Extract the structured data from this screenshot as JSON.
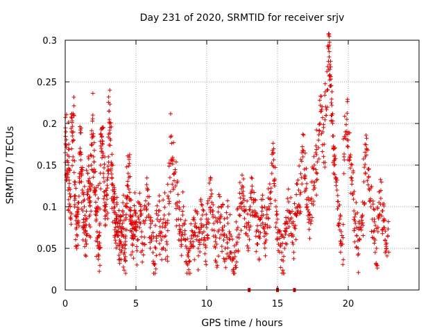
{
  "chart_data": {
    "type": "scatter",
    "title": "Day 231 of 2020, SRMTID for receiver srjv",
    "xlabel": "GPS time / hours",
    "ylabel": "SRMTID / TECUs",
    "xlim": [
      0,
      25
    ],
    "ylim": [
      0,
      0.3
    ],
    "xticks": [
      0,
      5,
      10,
      15,
      20
    ],
    "xtick_labels": [
      "0",
      "5",
      "10",
      "15",
      "20"
    ],
    "yticks": [
      0,
      0.05,
      0.1,
      0.15,
      0.2,
      0.25,
      0.3
    ],
    "ytick_labels": [
      "0",
      "0.05",
      "0.1",
      "0.15",
      "0.2",
      "0.25",
      "0.3"
    ],
    "grid": true,
    "marker": "+",
    "color": "#e00000",
    "series": [
      {
        "points": [
          [
            0.0,
            0.165
          ],
          [
            0.05,
            0.19
          ],
          [
            0.1,
            0.14
          ],
          [
            0.15,
            0.155
          ],
          [
            0.2,
            0.12
          ],
          [
            0.25,
            0.175
          ],
          [
            0.3,
            0.145
          ],
          [
            0.35,
            0.1
          ],
          [
            0.4,
            0.085
          ],
          [
            0.45,
            0.19
          ],
          [
            0.5,
            0.185
          ],
          [
            0.55,
            0.16
          ],
          [
            0.6,
            0.21
          ],
          [
            0.65,
            0.13
          ],
          [
            0.7,
            0.11
          ],
          [
            0.75,
            0.09
          ],
          [
            0.8,
            0.075
          ],
          [
            0.85,
            0.065
          ],
          [
            0.9,
            0.08
          ],
          [
            0.95,
            0.105
          ],
          [
            1.0,
            0.14
          ],
          [
            1.05,
            0.17
          ],
          [
            1.1,
            0.165
          ],
          [
            1.15,
            0.13
          ],
          [
            1.2,
            0.12
          ],
          [
            1.25,
            0.095
          ],
          [
            1.3,
            0.085
          ],
          [
            1.35,
            0.1
          ],
          [
            1.4,
            0.075
          ],
          [
            1.45,
            0.06
          ],
          [
            1.5,
            0.055
          ],
          [
            1.55,
            0.115
          ],
          [
            1.6,
            0.14
          ],
          [
            1.65,
            0.13
          ],
          [
            1.7,
            0.105
          ],
          [
            1.75,
            0.09
          ],
          [
            1.8,
            0.12
          ],
          [
            1.85,
            0.15
          ],
          [
            1.9,
            0.175
          ],
          [
            1.95,
            0.21
          ],
          [
            2.0,
            0.16
          ],
          [
            2.05,
            0.145
          ],
          [
            2.1,
            0.12
          ],
          [
            2.15,
            0.095
          ],
          [
            2.2,
            0.085
          ],
          [
            2.25,
            0.07
          ],
          [
            2.3,
            0.1
          ],
          [
            2.35,
            0.065
          ],
          [
            2.4,
            0.05
          ],
          [
            2.45,
            0.08
          ],
          [
            2.5,
            0.15
          ],
          [
            2.55,
            0.17
          ],
          [
            2.6,
            0.195
          ],
          [
            2.65,
            0.175
          ],
          [
            2.7,
            0.14
          ],
          [
            2.75,
            0.13
          ],
          [
            2.8,
            0.105
          ],
          [
            2.85,
            0.1
          ],
          [
            2.9,
            0.09
          ],
          [
            2.95,
            0.115
          ],
          [
            3.0,
            0.135
          ],
          [
            3.05,
            0.16
          ],
          [
            3.1,
            0.215
          ],
          [
            3.15,
            0.2
          ],
          [
            3.2,
            0.18
          ],
          [
            3.25,
            0.15
          ],
          [
            3.3,
            0.135
          ],
          [
            3.35,
            0.12
          ],
          [
            3.4,
            0.11
          ],
          [
            3.45,
            0.095
          ],
          [
            3.5,
            0.1
          ],
          [
            3.55,
            0.08
          ],
          [
            3.6,
            0.07
          ],
          [
            3.65,
            0.085
          ],
          [
            3.7,
            0.08
          ],
          [
            3.75,
            0.065
          ],
          [
            3.8,
            0.075
          ],
          [
            3.85,
            0.06
          ],
          [
            3.9,
            0.075
          ],
          [
            3.95,
            0.07
          ],
          [
            4.0,
            0.065
          ],
          [
            4.05,
            0.08
          ],
          [
            4.1,
            0.09
          ],
          [
            4.15,
            0.055
          ],
          [
            4.2,
            0.045
          ],
          [
            4.25,
            0.04
          ],
          [
            4.3,
            0.085
          ],
          [
            4.35,
            0.11
          ],
          [
            4.4,
            0.125
          ],
          [
            4.45,
            0.14
          ],
          [
            4.5,
            0.135
          ],
          [
            4.55,
            0.11
          ],
          [
            4.6,
            0.09
          ],
          [
            4.65,
            0.08
          ],
          [
            4.7,
            0.07
          ],
          [
            4.75,
            0.055
          ],
          [
            4.8,
            0.065
          ],
          [
            4.85,
            0.075
          ],
          [
            4.9,
            0.08
          ],
          [
            4.95,
            0.09
          ],
          [
            5.0,
            0.075
          ],
          [
            5.1,
            0.06
          ],
          [
            5.2,
            0.085
          ],
          [
            5.3,
            0.095
          ],
          [
            5.4,
            0.07
          ],
          [
            5.5,
            0.055
          ],
          [
            5.6,
            0.08
          ],
          [
            5.7,
            0.1
          ],
          [
            5.8,
            0.12
          ],
          [
            5.9,
            0.09
          ],
          [
            6.0,
            0.075
          ],
          [
            6.1,
            0.065
          ],
          [
            6.2,
            0.045
          ],
          [
            6.3,
            0.03
          ],
          [
            6.4,
            0.05
          ],
          [
            6.5,
            0.085
          ],
          [
            6.6,
            0.095
          ],
          [
            6.7,
            0.07
          ],
          [
            6.8,
            0.06
          ],
          [
            6.9,
            0.08
          ],
          [
            7.0,
            0.09
          ],
          [
            7.1,
            0.065
          ],
          [
            7.2,
            0.055
          ],
          [
            7.3,
            0.11
          ],
          [
            7.4,
            0.135
          ],
          [
            7.5,
            0.185
          ],
          [
            7.6,
            0.155
          ],
          [
            7.7,
            0.14
          ],
          [
            7.8,
            0.125
          ],
          [
            7.9,
            0.105
          ],
          [
            8.0,
            0.085
          ],
          [
            8.1,
            0.07
          ],
          [
            8.2,
            0.065
          ],
          [
            8.3,
            0.09
          ],
          [
            8.4,
            0.08
          ],
          [
            8.5,
            0.06
          ],
          [
            8.6,
            0.05
          ],
          [
            8.7,
            0.04
          ],
          [
            8.8,
            0.035
          ],
          [
            8.9,
            0.055
          ],
          [
            9.0,
            0.07
          ],
          [
            9.1,
            0.065
          ],
          [
            9.2,
            0.08
          ],
          [
            9.3,
            0.075
          ],
          [
            9.4,
            0.05
          ],
          [
            9.5,
            0.06
          ],
          [
            9.6,
            0.085
          ],
          [
            9.7,
            0.09
          ],
          [
            9.8,
            0.07
          ],
          [
            9.9,
            0.06
          ],
          [
            10.0,
            0.075
          ],
          [
            10.1,
            0.085
          ],
          [
            10.2,
            0.11
          ],
          [
            10.3,
            0.12
          ],
          [
            10.4,
            0.095
          ],
          [
            10.5,
            0.08
          ],
          [
            10.6,
            0.065
          ],
          [
            10.7,
            0.055
          ],
          [
            10.8,
            0.07
          ],
          [
            10.9,
            0.085
          ],
          [
            11.0,
            0.09
          ],
          [
            11.1,
            0.075
          ],
          [
            11.2,
            0.06
          ],
          [
            11.3,
            0.05
          ],
          [
            11.4,
            0.065
          ],
          [
            11.5,
            0.08
          ],
          [
            11.6,
            0.07
          ],
          [
            11.7,
            0.045
          ],
          [
            11.8,
            0.035
          ],
          [
            11.9,
            0.025
          ],
          [
            12.0,
            0.04
          ],
          [
            12.1,
            0.055
          ],
          [
            12.2,
            0.075
          ],
          [
            12.3,
            0.09
          ],
          [
            12.4,
            0.1
          ],
          [
            12.5,
            0.125
          ],
          [
            12.6,
            0.11
          ],
          [
            12.7,
            0.095
          ],
          [
            12.8,
            0.08
          ],
          [
            12.9,
            0.065
          ],
          [
            13.0,
            0.075
          ],
          [
            13.1,
            0.09
          ],
          [
            13.2,
            0.12
          ],
          [
            13.3,
            0.105
          ],
          [
            13.4,
            0.09
          ],
          [
            13.5,
            0.07
          ],
          [
            13.6,
            0.055
          ],
          [
            13.7,
            0.065
          ],
          [
            13.8,
            0.085
          ],
          [
            13.9,
            0.1
          ],
          [
            14.0,
            0.09
          ],
          [
            14.1,
            0.07
          ],
          [
            14.2,
            0.06
          ],
          [
            14.3,
            0.075
          ],
          [
            14.4,
            0.1
          ],
          [
            14.5,
            0.11
          ],
          [
            14.6,
            0.14
          ],
          [
            14.7,
            0.165
          ],
          [
            14.8,
            0.125
          ],
          [
            14.9,
            0.1
          ],
          [
            15.0,
            0.085
          ],
          [
            15.1,
            0.07
          ],
          [
            15.2,
            0.055
          ],
          [
            15.3,
            0.045
          ],
          [
            15.4,
            0.035
          ],
          [
            15.5,
            0.05
          ],
          [
            15.6,
            0.07
          ],
          [
            15.7,
            0.08
          ],
          [
            15.8,
            0.095
          ],
          [
            15.9,
            0.085
          ],
          [
            16.0,
            0.065
          ],
          [
            16.1,
            0.055
          ],
          [
            16.2,
            0.075
          ],
          [
            16.3,
            0.09
          ],
          [
            16.4,
            0.1
          ],
          [
            16.5,
            0.12
          ],
          [
            16.6,
            0.115
          ],
          [
            16.7,
            0.135
          ],
          [
            16.8,
            0.16
          ],
          [
            16.9,
            0.145
          ],
          [
            17.0,
            0.12
          ],
          [
            17.1,
            0.1
          ],
          [
            17.2,
            0.085
          ],
          [
            17.3,
            0.09
          ],
          [
            17.4,
            0.11
          ],
          [
            17.5,
            0.13
          ],
          [
            17.6,
            0.15
          ],
          [
            17.7,
            0.165
          ],
          [
            17.8,
            0.14
          ],
          [
            17.9,
            0.18
          ],
          [
            18.0,
            0.2
          ],
          [
            18.1,
            0.215
          ],
          [
            18.2,
            0.19
          ],
          [
            18.3,
            0.175
          ],
          [
            18.4,
            0.22
          ],
          [
            18.5,
            0.24
          ],
          [
            18.6,
            0.29
          ],
          [
            18.65,
            0.28
          ],
          [
            18.7,
            0.265
          ],
          [
            18.75,
            0.245
          ],
          [
            18.8,
            0.225
          ],
          [
            18.85,
            0.21
          ],
          [
            18.9,
            0.185
          ],
          [
            18.95,
            0.17
          ],
          [
            19.0,
            0.15
          ],
          [
            19.1,
            0.135
          ],
          [
            19.2,
            0.12
          ],
          [
            19.3,
            0.1
          ],
          [
            19.4,
            0.085
          ],
          [
            19.5,
            0.07
          ],
          [
            19.6,
            0.055
          ],
          [
            19.7,
            0.16
          ],
          [
            19.8,
            0.19
          ],
          [
            19.9,
            0.205
          ],
          [
            20.0,
            0.18
          ],
          [
            20.1,
            0.16
          ],
          [
            20.2,
            0.135
          ],
          [
            20.3,
            0.115
          ],
          [
            20.4,
            0.095
          ],
          [
            20.5,
            0.08
          ],
          [
            20.6,
            0.065
          ],
          [
            20.7,
            0.05
          ],
          [
            20.8,
            0.06
          ],
          [
            20.9,
            0.075
          ],
          [
            21.0,
            0.09
          ],
          [
            21.1,
            0.13
          ],
          [
            21.2,
            0.16
          ],
          [
            21.3,
            0.17
          ],
          [
            21.4,
            0.145
          ],
          [
            21.5,
            0.12
          ],
          [
            21.6,
            0.1
          ],
          [
            21.7,
            0.085
          ],
          [
            21.8,
            0.07
          ],
          [
            21.9,
            0.06
          ],
          [
            22.0,
            0.05
          ],
          [
            22.1,
            0.07
          ],
          [
            22.2,
            0.09
          ],
          [
            22.3,
            0.11
          ],
          [
            22.4,
            0.095
          ],
          [
            22.5,
            0.075
          ],
          [
            22.6,
            0.06
          ],
          [
            22.7,
            0.05
          ],
          [
            22.8,
            0.065
          ]
        ]
      }
    ],
    "zero_markers": [
      13.0,
      15.0,
      16.2
    ]
  }
}
